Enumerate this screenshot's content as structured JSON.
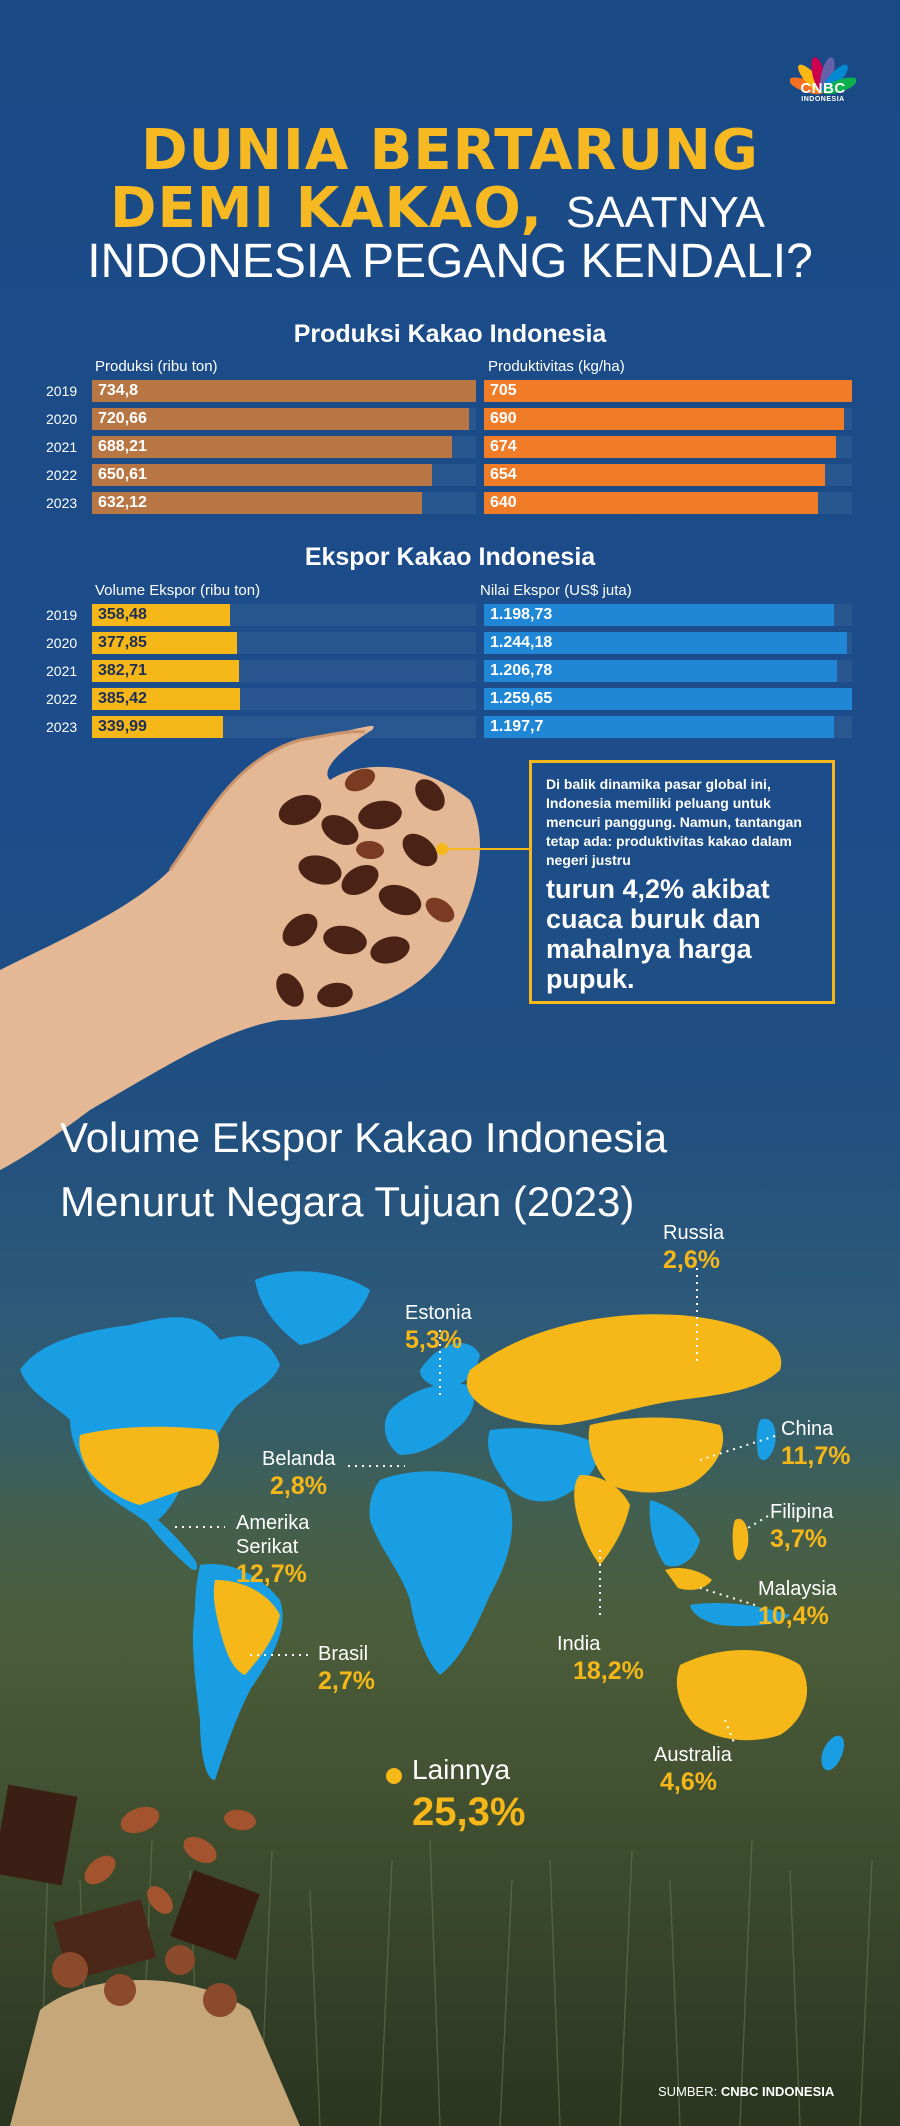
{
  "header": {
    "logo_text": "CNBC",
    "logo_sub": "INDONESIA",
    "title_line1": "DUNIA BERTARUNG",
    "title_line2_bold": "DEMI KAKAO,",
    "title_line2_rest": "SAATNYA",
    "title_line3": "INDONESIA PEGANG KENDALI?"
  },
  "colors": {
    "background": "#1a4a86",
    "accent_yellow": "#f6b718",
    "bar_brown": "#b77643",
    "bar_orange": "#f07c28",
    "bar_blue": "#1f87d6"
  },
  "chart_data": [
    {
      "type": "bar",
      "title": "Produksi Kakao Indonesia",
      "categories": [
        "2019",
        "2020",
        "2021",
        "2022",
        "2023"
      ],
      "series": [
        {
          "name": "Produksi (ribu ton)",
          "values": [
            734.8,
            720.66,
            688.21,
            650.61,
            632.12
          ],
          "labels": [
            "734,8",
            "720,66",
            "688,21",
            "650,61",
            "632,12"
          ]
        },
        {
          "name": "Produktivitas (kg/ha)",
          "values": [
            705,
            690,
            674,
            654,
            640
          ],
          "labels": [
            "705",
            "690",
            "674",
            "654",
            "640"
          ]
        }
      ]
    },
    {
      "type": "bar",
      "title": "Ekspor Kakao Indonesia",
      "categories": [
        "2019",
        "2020",
        "2021",
        "2022",
        "2023"
      ],
      "series": [
        {
          "name": "Volume Ekspor (ribu ton)",
          "values": [
            358.48,
            377.85,
            382.71,
            385.42,
            339.99
          ],
          "labels": [
            "358,48",
            "377,85",
            "382,71",
            "385,42",
            "339,99"
          ]
        },
        {
          "name": "Nilai Ekspor (US$ juta)",
          "values": [
            1198.73,
            1244.18,
            1206.78,
            1259.65,
            1197.7
          ],
          "labels": [
            "1.198,73",
            "1.244,18",
            "1.206,78",
            "1.259,65",
            "1.197,7"
          ]
        }
      ]
    },
    {
      "type": "map",
      "title_line1": "Volume Ekspor Kakao Indonesia",
      "title_line2": "Menurut Negara Tujuan (2023)",
      "items": [
        {
          "name": "Russia",
          "value": 2.6,
          "label": "2,6%"
        },
        {
          "name": "Estonia",
          "value": 5.3,
          "label": "5,3%"
        },
        {
          "name": "China",
          "value": 11.7,
          "label": "11,7%"
        },
        {
          "name": "Belanda",
          "value": 2.8,
          "label": "2,8%"
        },
        {
          "name": "Filipina",
          "value": 3.7,
          "label": "3,7%"
        },
        {
          "name": "Amerika Serikat",
          "value": 12.7,
          "label": "12,7%"
        },
        {
          "name": "Malaysia",
          "value": 10.4,
          "label": "10,4%"
        },
        {
          "name": "Brasil",
          "value": 2.7,
          "label": "2,7%"
        },
        {
          "name": "India",
          "value": 18.2,
          "label": "18,2%"
        },
        {
          "name": "Australia",
          "value": 4.6,
          "label": "4,6%"
        },
        {
          "name": "Lainnya",
          "value": 25.3,
          "label": "25,3%"
        }
      ]
    }
  ],
  "callout": {
    "small": "Di balik dinamika pasar global ini, Indonesia memiliki peluang untuk mencuri panggung. Namun, tantangan tetap ada: produktivitas kakao dalam negeri justru",
    "big": "turun 4,2% akibat cuaca buruk dan mahalnya harga pupuk."
  },
  "map_labels": {
    "amerika_line1": "Amerika",
    "amerika_line2": "Serikat"
  },
  "source": {
    "prefix": "SUMBER:",
    "name": "CNBC INDONESIA"
  }
}
